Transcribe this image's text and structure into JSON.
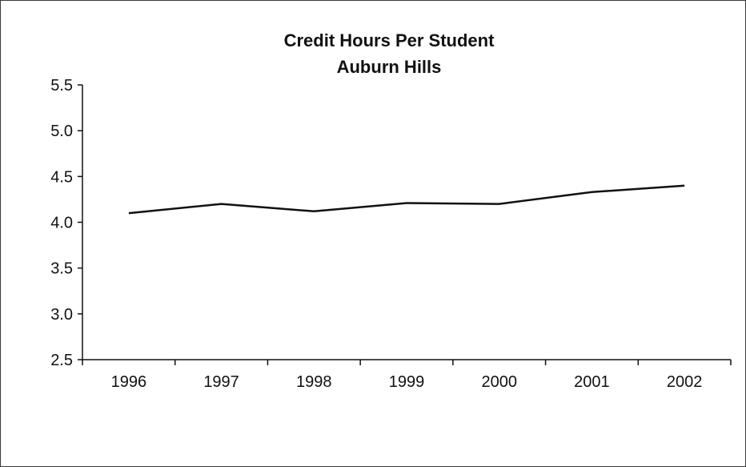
{
  "chart_data": {
    "type": "line",
    "title": "Credit Hours Per Student",
    "subtitle": "Auburn Hills",
    "xlabel": "",
    "ylabel": "",
    "categories": [
      "1996",
      "1997",
      "1998",
      "1999",
      "2000",
      "2001",
      "2002"
    ],
    "series": [
      {
        "values": [
          4.1,
          4.2,
          4.12,
          4.21,
          4.2,
          4.33,
          4.4
        ],
        "color": "#111111"
      }
    ],
    "ylim": [
      2.5,
      5.5
    ],
    "yticks": [
      "5.5",
      "5.0",
      "4.5",
      "4.0",
      "3.5",
      "3.0",
      "2.5"
    ],
    "ytick_values": [
      5.5,
      5.0,
      4.5,
      4.0,
      3.5,
      3.0,
      2.5
    ],
    "grid": false,
    "legend": "none"
  }
}
